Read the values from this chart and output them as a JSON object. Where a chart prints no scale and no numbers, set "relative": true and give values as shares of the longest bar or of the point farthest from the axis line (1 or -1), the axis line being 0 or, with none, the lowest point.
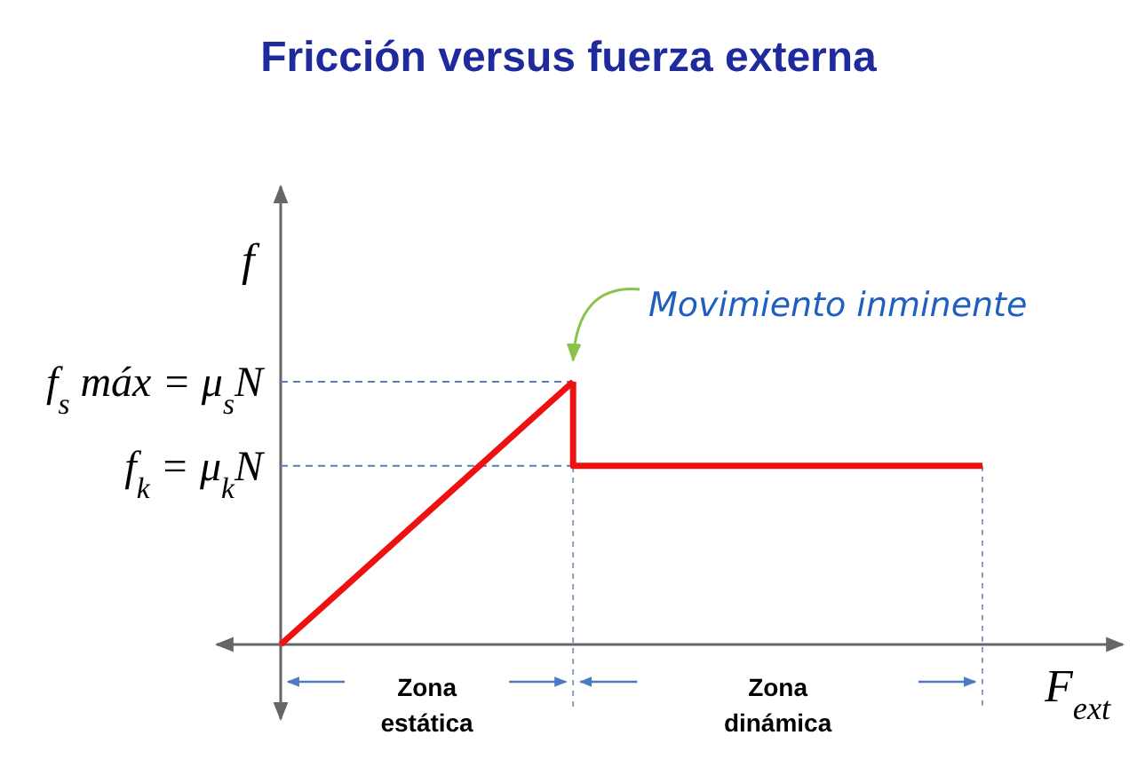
{
  "chart_data": {
    "type": "line",
    "title": "Fricción versus fuerza externa",
    "xlabel": "F$_{ext}$",
    "ylabel": "f",
    "relative": true,
    "grid": false,
    "categories": [
      null,
      null,
      null,
      null,
      null,
      null,
      null,
      null,
      null,
      null,
      null,
      null,
      null
    ],
    "series": [
      {
        "color": "#ee1111",
        "values": [
          0,
          0.2,
          0.4,
          0.6,
          0.8,
          1,
          null,
          null,
          null,
          null,
          null,
          null,
          null
        ]
      },
      {
        "type": "step",
        "color": "#ee1111",
        "values": [
          null,
          null,
          null,
          null,
          null,
          1,
          0.68,
          0.68,
          0.68,
          0.68,
          0.68,
          0.68,
          0.68
        ]
      }
    ],
    "ref_lines": [
      {
        "axis": "y",
        "value": 1,
        "label": "f$_{s}$ máx = μ$_{s}$N",
        "color": "#5b7db8",
        "line_style": "dashed"
      },
      {
        "axis": "y",
        "value": 0.68,
        "label": "f$_{k}$ = μ$_{k}$N",
        "color": "#5b7db8",
        "line_style": "dashed"
      }
    ],
    "annotations": [
      "Movimiento inminente",
      "Zona estática",
      "Zona dinámica"
    ]
  }
}
